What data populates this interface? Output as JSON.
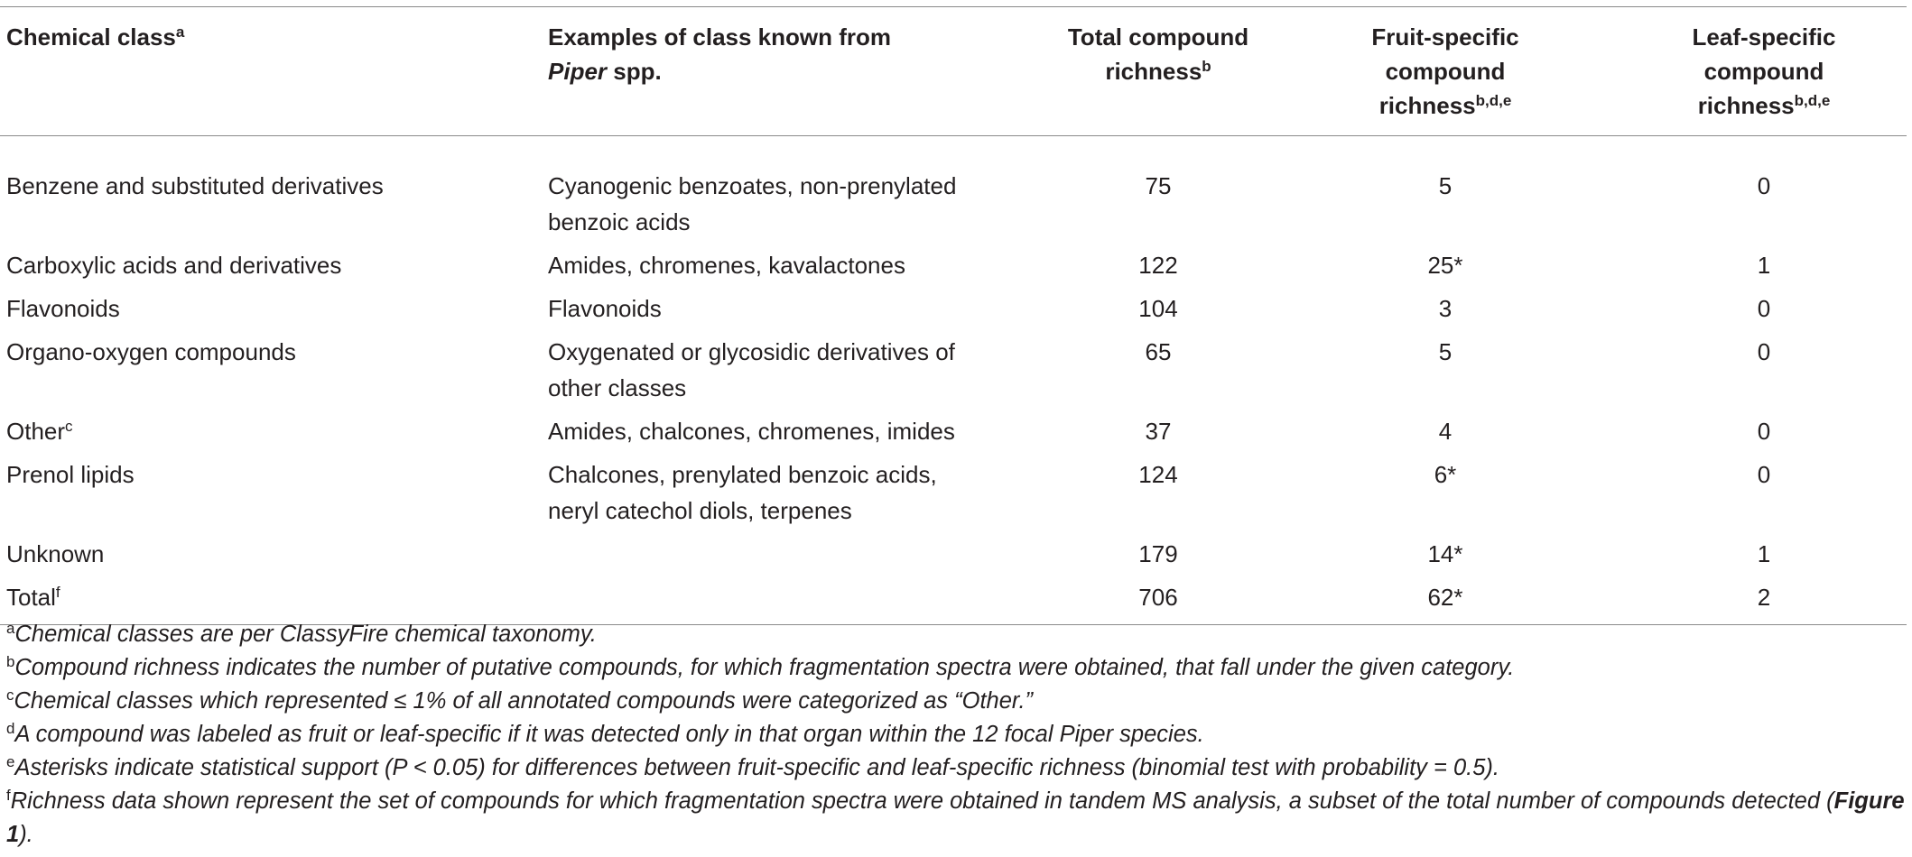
{
  "table": {
    "header": [
      [
        [
          {
            "text": "Chemical class"
          },
          {
            "text": "a",
            "style": "sup"
          }
        ]
      ],
      [
        "Examples of class known from",
        [
          {
            "text": "Piper",
            "style": "italic"
          },
          {
            "text": " spp."
          }
        ]
      ],
      [
        "Total compound",
        [
          {
            "text": "richness"
          },
          {
            "text": "b",
            "style": "sup"
          }
        ]
      ],
      [
        "Fruit-specific",
        "compound",
        [
          {
            "text": "richness"
          },
          {
            "text": "b,d,e",
            "style": "sup"
          }
        ]
      ],
      [
        "Leaf-specific",
        "compound",
        [
          {
            "text": "richness"
          },
          {
            "text": "b,d,e",
            "style": "sup"
          }
        ]
      ]
    ],
    "rows": [
      [
        [
          "Benzene and substituted derivatives"
        ],
        [
          "Cyanogenic benzoates, non-prenylated",
          "benzoic acids"
        ],
        [
          75
        ],
        [
          5
        ],
        [
          0
        ]
      ],
      [
        [
          "Carboxylic acids and derivatives"
        ],
        [
          "Amides, chromenes, kavalactones"
        ],
        [
          122
        ],
        [
          "25*"
        ],
        [
          1
        ]
      ],
      [
        [
          "Flavonoids"
        ],
        [
          "Flavonoids"
        ],
        [
          104
        ],
        [
          3
        ],
        [
          0
        ]
      ],
      [
        [
          "Organo-oxygen compounds"
        ],
        [
          "Oxygenated or glycosidic derivatives of",
          "other classes"
        ],
        [
          65
        ],
        [
          5
        ],
        [
          0
        ]
      ],
      [
        [
          [
            {
              "text": "Other"
            },
            {
              "text": "c",
              "style": "sup"
            }
          ]
        ],
        [
          "Amides, chalcones, chromenes, imides"
        ],
        [
          37
        ],
        [
          4
        ],
        [
          0
        ]
      ],
      [
        [
          "Prenol lipids"
        ],
        [
          "Chalcones, prenylated benzoic acids,",
          "neryl catechol diols, terpenes"
        ],
        [
          124
        ],
        [
          "6*"
        ],
        [
          0
        ]
      ],
      [
        [
          "Unknown"
        ],
        [],
        [
          179
        ],
        [
          "14*"
        ],
        [
          1
        ]
      ],
      [
        [
          [
            {
              "text": "Total"
            },
            {
              "text": "f",
              "style": "sup"
            }
          ]
        ],
        [],
        [
          706
        ],
        [
          "62*"
        ],
        [
          2
        ]
      ]
    ]
  },
  "footnotes": [
    [
      {
        "text": "a",
        "style": "sup"
      },
      {
        "text": "Chemical classes are per ClassyFire chemical taxonomy.",
        "style": "italic"
      }
    ],
    [
      {
        "text": "b",
        "style": "sup"
      },
      {
        "text": "Compound richness indicates the number of putative compounds, for which fragmentation spectra were obtained, that fall under the given category.",
        "style": "italic"
      }
    ],
    [
      {
        "text": "c",
        "style": "sup"
      },
      {
        "text": "Chemical classes which represented ≤ 1% of all annotated compounds were categorized as “Other.”",
        "style": "italic"
      }
    ],
    [
      {
        "text": "d",
        "style": "sup"
      },
      {
        "text": "A compound was labeled as fruit or leaf-specific if it was detected only in that organ within the 12 focal Piper species.",
        "style": "italic"
      }
    ],
    [
      {
        "text": "e",
        "style": "sup"
      },
      {
        "text": "Asterisks indicate statistical support (P < 0.05) for differences between fruit-specific and leaf-specific richness (binomial test with probability = 0.5).",
        "style": "italic"
      }
    ],
    [
      {
        "text": "f",
        "style": "sup"
      },
      {
        "text": "Richness data shown represent the set of compounds for which fragmentation spectra were obtained in tandem MS analysis, a subset of the total number of compounds detected (",
        "style": "italic"
      },
      {
        "text": "Figure 1",
        "style": "bold-italic"
      },
      {
        "text": ").",
        "style": "italic"
      }
    ]
  ]
}
